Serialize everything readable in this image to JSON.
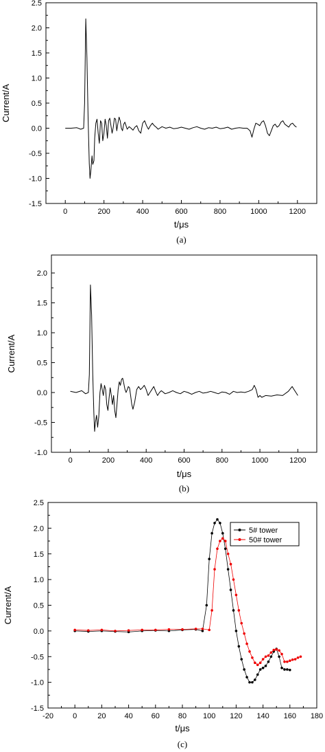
{
  "panels": [
    {
      "caption": "(a)",
      "chart_data": {
        "type": "line",
        "title": "",
        "xlabel": "t/μs",
        "ylabel": "Current/A",
        "xlim": [
          -100,
          1300
        ],
        "ylim": [
          -1.5,
          2.5
        ],
        "x_ticks": [
          0,
          200,
          400,
          600,
          800,
          1000,
          1200
        ],
        "y_ticks": [
          -1.5,
          -1.0,
          -0.5,
          0.0,
          0.5,
          1.0,
          1.5,
          2.0,
          2.5
        ],
        "y_tick_labels": [
          "-1.5",
          "-1.0",
          "-0.5",
          "0.0",
          "0.5",
          "1.0",
          "1.5",
          "2.0",
          "2.5"
        ],
        "color": "#000000",
        "series": [
          {
            "x": [
              0,
              30,
              60,
              80,
              95,
              100,
              106,
              112,
              118,
              124,
              128,
              132,
              138,
              142,
              148,
              152,
              158,
              164,
              170,
              176,
              182,
              188,
              194,
              200,
              206,
              212,
              218,
              224,
              230,
              236,
              242,
              248,
              254,
              260,
              266,
              272,
              278,
              284,
              290,
              296,
              302,
              308,
              314,
              320,
              330,
              340,
              350,
              360,
              370,
              380,
              390,
              400,
              410,
              420,
              430,
              440,
              450,
              460,
              470,
              480,
              500,
              520,
              540,
              560,
              580,
              600,
              620,
              640,
              660,
              680,
              700,
              720,
              740,
              760,
              780,
              800,
              820,
              840,
              860,
              880,
              900,
              920,
              940,
              955,
              965,
              975,
              985,
              995,
              1005,
              1015,
              1025,
              1035,
              1045,
              1055,
              1065,
              1075,
              1085,
              1095,
              1105,
              1115,
              1125,
              1135,
              1145,
              1155,
              1165,
              1175,
              1185,
              1195
            ],
            "y": [
              0.0,
              0.0,
              0.01,
              -0.02,
              0.0,
              0.5,
              2.18,
              1.4,
              0.2,
              -0.7,
              -1.0,
              -0.85,
              -0.55,
              -0.72,
              -0.65,
              -0.2,
              0.1,
              0.18,
              -0.1,
              -0.3,
              0.15,
              0.1,
              -0.25,
              -0.1,
              0.18,
              0.05,
              -0.2,
              0.15,
              0.2,
              0.05,
              -0.1,
              0.02,
              0.2,
              0.18,
              -0.05,
              0.1,
              0.22,
              0.15,
              0.0,
              -0.05,
              0.08,
              0.12,
              0.05,
              -0.02,
              0.03,
              0.0,
              -0.04,
              0.02,
              0.05,
              -0.05,
              -0.1,
              0.1,
              0.15,
              0.05,
              -0.02,
              0.05,
              0.1,
              0.05,
              0.02,
              -0.02,
              0.03,
              0.0,
              0.02,
              -0.01,
              0.0,
              0.02,
              0.0,
              -0.02,
              0.01,
              0.03,
              0.0,
              -0.02,
              0.01,
              0.0,
              0.02,
              -0.01,
              0.0,
              0.02,
              -0.02,
              0.0,
              0.01,
              0.0,
              0.0,
              -0.05,
              -0.18,
              -0.02,
              0.1,
              0.08,
              0.05,
              0.12,
              0.15,
              0.05,
              -0.1,
              -0.15,
              -0.05,
              0.05,
              0.08,
              0.02,
              0.05,
              0.12,
              0.15,
              0.08,
              0.05,
              0.02,
              0.08,
              0.1,
              0.05,
              0.02
            ]
          }
        ]
      }
    },
    {
      "caption": "(b)",
      "chart_data": {
        "type": "line",
        "title": "",
        "xlabel": "t/μs",
        "ylabel": "Current/A",
        "xlim": [
          -100,
          1300
        ],
        "ylim": [
          -1.0,
          2.3
        ],
        "x_ticks": [
          0,
          200,
          400,
          600,
          800,
          1000,
          1200
        ],
        "y_ticks": [
          -1.0,
          -0.5,
          0.0,
          0.5,
          1.0,
          1.5,
          2.0
        ],
        "y_tick_labels": [
          "-1.0",
          "-0.5",
          "0.0",
          "0.5",
          "1.0",
          "1.5",
          "2.0"
        ],
        "color": "#000000",
        "series": [
          {
            "x": [
              0,
              30,
              60,
              80,
              95,
              100,
              106,
              112,
              118,
              124,
              128,
              132,
              138,
              144,
              150,
              156,
              162,
              168,
              174,
              180,
              186,
              192,
              198,
              204,
              210,
              216,
              222,
              228,
              234,
              240,
              246,
              252,
              258,
              264,
              270,
              276,
              282,
              288,
              294,
              300,
              306,
              312,
              318,
              324,
              330,
              340,
              350,
              360,
              370,
              380,
              390,
              400,
              410,
              420,
              430,
              440,
              450,
              460,
              470,
              480,
              500,
              520,
              540,
              560,
              580,
              600,
              620,
              640,
              660,
              680,
              700,
              720,
              740,
              760,
              780,
              800,
              820,
              840,
              860,
              880,
              900,
              920,
              940,
              960,
              970,
              980,
              990,
              1000,
              1010,
              1030,
              1060,
              1090,
              1120,
              1150,
              1170,
              1180,
              1190,
              1200
            ],
            "y": [
              0.02,
              0.0,
              0.03,
              -0.02,
              0.0,
              0.3,
              1.8,
              1.3,
              0.3,
              -0.35,
              -0.65,
              -0.5,
              -0.38,
              -0.58,
              -0.4,
              0.0,
              0.15,
              0.05,
              -0.05,
              0.12,
              0.05,
              -0.2,
              -0.3,
              -0.1,
              0.08,
              -0.05,
              -0.2,
              -0.05,
              -0.3,
              -0.42,
              -0.2,
              0.05,
              0.18,
              0.12,
              0.22,
              0.24,
              0.15,
              0.05,
              0.0,
              0.05,
              0.1,
              0.08,
              -0.05,
              -0.2,
              -0.28,
              -0.15,
              0.05,
              0.1,
              0.05,
              0.08,
              0.12,
              0.05,
              -0.05,
              0.0,
              0.05,
              0.1,
              0.02,
              -0.05,
              0.0,
              0.03,
              -0.02,
              0.0,
              0.03,
              0.0,
              -0.02,
              0.02,
              0.0,
              -0.03,
              0.0,
              0.02,
              -0.01,
              0.0,
              0.02,
              0.0,
              -0.02,
              0.01,
              0.0,
              -0.03,
              0.02,
              0.0,
              0.01,
              0.0,
              0.02,
              0.05,
              0.12,
              0.05,
              -0.08,
              -0.05,
              -0.08,
              -0.05,
              -0.06,
              -0.04,
              -0.05,
              0.02,
              0.1,
              0.05,
              0.0,
              -0.05
            ]
          }
        ]
      }
    },
    {
      "caption": "(c)",
      "chart_data": {
        "type": "scatter",
        "title": "",
        "xlabel": "t/μs",
        "ylabel": "Current/A",
        "xlim": [
          -20,
          180
        ],
        "ylim": [
          -1.5,
          2.5
        ],
        "x_ticks": [
          -20,
          0,
          20,
          40,
          60,
          80,
          100,
          120,
          140,
          160,
          180
        ],
        "y_ticks": [
          -1.5,
          -1.0,
          -0.5,
          0.0,
          0.5,
          1.0,
          1.5,
          2.0,
          2.5
        ],
        "y_tick_labels": [
          "-1.5",
          "-1.0",
          "-0.5",
          "0.0",
          "0.5",
          "1.0",
          "1.5",
          "2.0",
          "2.5"
        ],
        "legend_position": "top-right",
        "series": [
          {
            "name": "5# tower",
            "color": "#000000",
            "x": [
              0,
              10,
              20,
              30,
              40,
              50,
              60,
              70,
              80,
              90,
              95,
              98,
              100,
              102,
              104,
              106,
              108,
              110,
              112,
              114,
              116,
              118,
              120,
              122,
              124,
              126,
              128,
              130,
              132,
              134,
              136,
              138,
              140,
              142,
              144,
              146,
              148,
              150,
              152,
              154,
              156,
              158,
              160
            ],
            "y": [
              0.0,
              -0.01,
              0.0,
              -0.01,
              -0.02,
              0.0,
              0.01,
              0.0,
              0.02,
              0.03,
              0.0,
              0.5,
              1.4,
              1.9,
              2.1,
              2.17,
              2.1,
              1.9,
              1.6,
              1.2,
              0.8,
              0.4,
              0.0,
              -0.3,
              -0.55,
              -0.75,
              -0.9,
              -1.0,
              -1.0,
              -0.95,
              -0.85,
              -0.75,
              -0.72,
              -0.68,
              -0.6,
              -0.5,
              -0.4,
              -0.35,
              -0.5,
              -0.72,
              -0.75,
              -0.75,
              -0.76
            ]
          },
          {
            "name": "50# tower",
            "color": "#ee0000",
            "x": [
              0,
              10,
              20,
              30,
              40,
              50,
              60,
              70,
              80,
              90,
              95,
              100,
              102,
              104,
              106,
              108,
              110,
              112,
              114,
              116,
              118,
              120,
              122,
              124,
              126,
              128,
              130,
              132,
              134,
              136,
              138,
              140,
              142,
              144,
              146,
              148,
              150,
              152,
              154,
              156,
              158,
              160,
              162,
              164,
              166,
              168
            ],
            "y": [
              0.02,
              0.01,
              0.02,
              0.0,
              0.01,
              0.02,
              0.02,
              0.03,
              0.03,
              0.04,
              0.04,
              0.02,
              0.4,
              1.2,
              1.6,
              1.75,
              1.8,
              1.75,
              1.5,
              1.3,
              1.0,
              0.7,
              0.4,
              0.15,
              -0.05,
              -0.25,
              -0.4,
              -0.52,
              -0.62,
              -0.66,
              -0.62,
              -0.55,
              -0.5,
              -0.48,
              -0.42,
              -0.37,
              -0.36,
              -0.38,
              -0.45,
              -0.6,
              -0.6,
              -0.58,
              -0.56,
              -0.55,
              -0.52,
              -0.5
            ]
          }
        ]
      }
    }
  ]
}
